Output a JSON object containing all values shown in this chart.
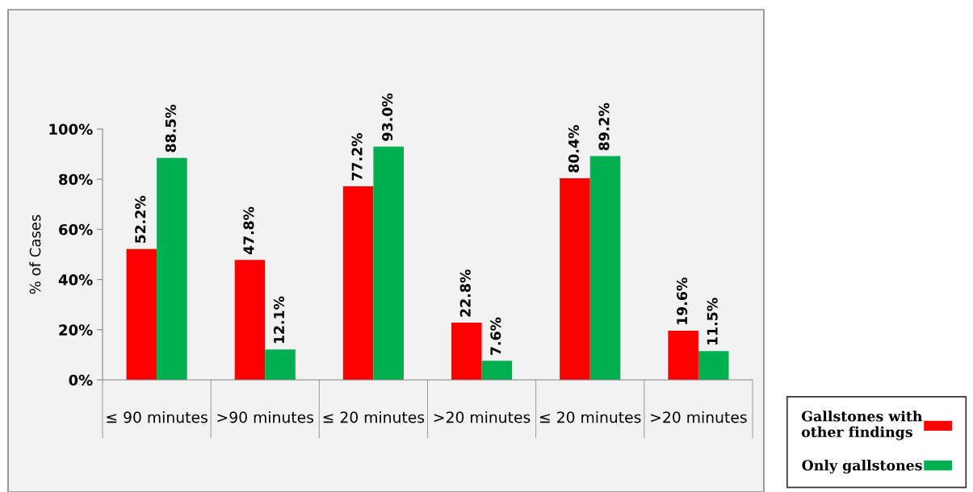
{
  "chart_data": {
    "type": "bar",
    "ylabel": "% of Cases",
    "categories": [
      "≤ 90 minutes",
      ">90 minutes",
      "≤ 20 minutes",
      ">20 minutes",
      "≤ 20 minutes",
      ">20 minutes"
    ],
    "series": [
      {
        "name": "Gallstones with\nother findings",
        "color": "#ff0000",
        "values": [
          52.2,
          47.8,
          77.2,
          22.8,
          80.4,
          19.6
        ],
        "value_labels": [
          "52.2%",
          "47.8%",
          "77.2%",
          "22.8%",
          "80.4%",
          "19.6%"
        ]
      },
      {
        "name": "Only gallstones",
        "color": "#00b050",
        "values": [
          88.5,
          12.1,
          93.0,
          7.6,
          89.2,
          11.5
        ],
        "value_labels": [
          "88.5%",
          "12.1%",
          "93.0%",
          "7.6%",
          "89.2%",
          "11.5%"
        ]
      }
    ],
    "ylim": [
      0,
      100
    ],
    "yticks": [
      {
        "value": 0,
        "label": "0%"
      },
      {
        "value": 20,
        "label": "20%"
      },
      {
        "value": 40,
        "label": "40%"
      },
      {
        "value": 60,
        "label": "60%"
      },
      {
        "value": 80,
        "label": "80%"
      },
      {
        "value": 100,
        "label": "100%"
      }
    ],
    "grid": false,
    "legend": "bottom right"
  }
}
